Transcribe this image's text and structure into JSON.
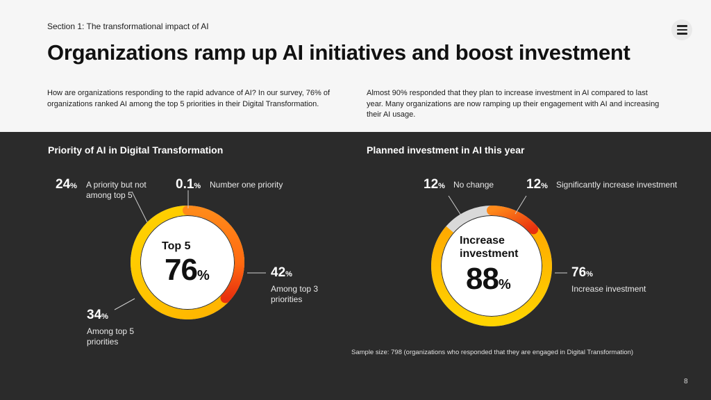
{
  "header": {
    "section": "Section 1: The transformational impact of AI",
    "title": "Organizations ramp up AI initiatives and boost investment",
    "menu_icon": "hamburger-menu-icon"
  },
  "intro": {
    "left": "How are organizations responding to the rapid advance of AI? In our survey, 76% of organizations ranked AI among the top 5 priorities in their Digital Transformation.",
    "right": "Almost 90% responded that they plan to increase investment in AI compared to last year. Many organizations are now ramping up their engagement with AI and increasing their AI usage."
  },
  "colors": {
    "dark_bg": "#2b2b2b",
    "grey_segment": "#d9d9d9",
    "yellow": "#ffd400",
    "orange": "#ff8a1a",
    "red": "#e8300f"
  },
  "chart_data": [
    {
      "type": "pie",
      "title": "Priority of AI in Digital Transformation",
      "center_label": "Top 5",
      "center_value": "76",
      "center_unit": "%",
      "segments": [
        {
          "value": "24",
          "unit": "%",
          "label": "A priority but not among top 5"
        },
        {
          "value": "0.1",
          "unit": "%",
          "label": "Number one priority"
        },
        {
          "value": "42",
          "unit": "%",
          "label": "Among top 3 priorities"
        },
        {
          "value": "34",
          "unit": "%",
          "label": "Among top 5 priorities"
        }
      ]
    },
    {
      "type": "pie",
      "title": "Planned investment in AI this year",
      "center_label": "Increase investment",
      "center_value": "88",
      "center_unit": "%",
      "segments": [
        {
          "value": "12",
          "unit": "%",
          "label": "No change"
        },
        {
          "value": "12",
          "unit": "%",
          "label": "Significantly increase investment"
        },
        {
          "value": "76",
          "unit": "%",
          "label": "Increase investment"
        }
      ]
    }
  ],
  "footer": {
    "sample": "Sample size: 798 (organizations who responded that they are engaged in Digital Transformation)",
    "page": "8"
  }
}
